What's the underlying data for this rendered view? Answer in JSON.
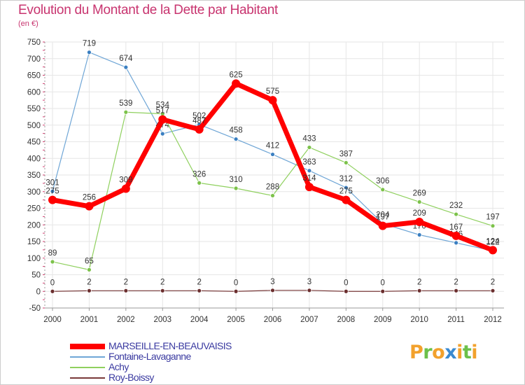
{
  "title": "Evolution du Montant de la Dette par Habitant",
  "subtitle": "(en €)",
  "logo": {
    "text": "Proxiti",
    "letters": [
      {
        "ch": "P",
        "color": "#f2a12c"
      },
      {
        "ch": "r",
        "color": "#6cc04a"
      },
      {
        "ch": "o",
        "color": "#f2a12c"
      },
      {
        "ch": "x",
        "color": "#3a8ad1"
      },
      {
        "ch": "i",
        "color": "#f2a12c"
      },
      {
        "ch": "t",
        "color": "#6cc04a"
      },
      {
        "ch": "i",
        "color": "#f2a12c"
      }
    ]
  },
  "chart_data": {
    "type": "line",
    "x": [
      "2000",
      "2001",
      "2002",
      "2003",
      "2004",
      "2005",
      "2006",
      "2007",
      "2008",
      "2009",
      "2010",
      "2011",
      "2012"
    ],
    "yticks": [
      750,
      700,
      650,
      600,
      550,
      500,
      450,
      400,
      350,
      300,
      250,
      200,
      150,
      100,
      50,
      0,
      -50
    ],
    "ylim": [
      -50,
      750
    ],
    "grid": true,
    "legend_position": "bottom-left",
    "series": [
      {
        "name": "Fontaine-Lavaganne",
        "color": "#6fa6d6",
        "marker_color": "#3a7fc1",
        "width": 1.2,
        "values": [
          301,
          719,
          674,
          474,
          502,
          458,
          412,
          363,
          312,
          204,
          170,
          146,
          122
        ],
        "labels": [
          "301",
          "719",
          "674",
          "474",
          "502",
          "458",
          "412",
          "363",
          "312",
          "204",
          "170",
          "146",
          "122"
        ]
      },
      {
        "name": "Achy",
        "color": "#8fd05e",
        "marker_color": "#7cc24a",
        "width": 1.2,
        "values": [
          89,
          65,
          539,
          534,
          326,
          310,
          288,
          433,
          387,
          306,
          269,
          232,
          197
        ],
        "labels": [
          "89",
          "65",
          "539",
          "534",
          "326",
          "310",
          "288",
          "433",
          "387",
          "306",
          "269",
          "232",
          "197"
        ]
      },
      {
        "name": "Roy-Boissy",
        "color": "#7a3a3a",
        "marker_color": "#6b2f2f",
        "width": 1.2,
        "values": [
          0,
          2,
          2,
          2,
          2,
          0,
          3,
          3,
          0,
          0,
          2,
          2,
          2
        ],
        "labels": [
          "0",
          "2",
          "2",
          "2",
          "2",
          "0",
          "3",
          "3",
          "0",
          "0",
          "2",
          "2",
          "2"
        ]
      },
      {
        "name": "MARSEILLE-EN-BEAUVAISIS",
        "color": "#ff0000",
        "marker_color": "#ff0000",
        "width": 7,
        "values": [
          275,
          256,
          309,
          517,
          487,
          625,
          575,
          314,
          275,
          197,
          209,
          167,
          124
        ],
        "labels": [
          "275",
          "256",
          "309",
          "517",
          "487",
          "625",
          "575",
          "314",
          "275",
          "197",
          "209",
          "167",
          "124"
        ]
      }
    ],
    "legend": [
      {
        "name": "MARSEILLE-EN-BEAUVAISIS",
        "color": "#ff0000",
        "width": 8
      },
      {
        "name": "Fontaine-Lavaganne",
        "color": "#6fa6d6",
        "width": 1.5
      },
      {
        "name": "Achy",
        "color": "#8fd05e",
        "width": 1.5
      },
      {
        "name": "Roy-Boissy",
        "color": "#7a3a3a",
        "width": 1.5
      }
    ]
  }
}
